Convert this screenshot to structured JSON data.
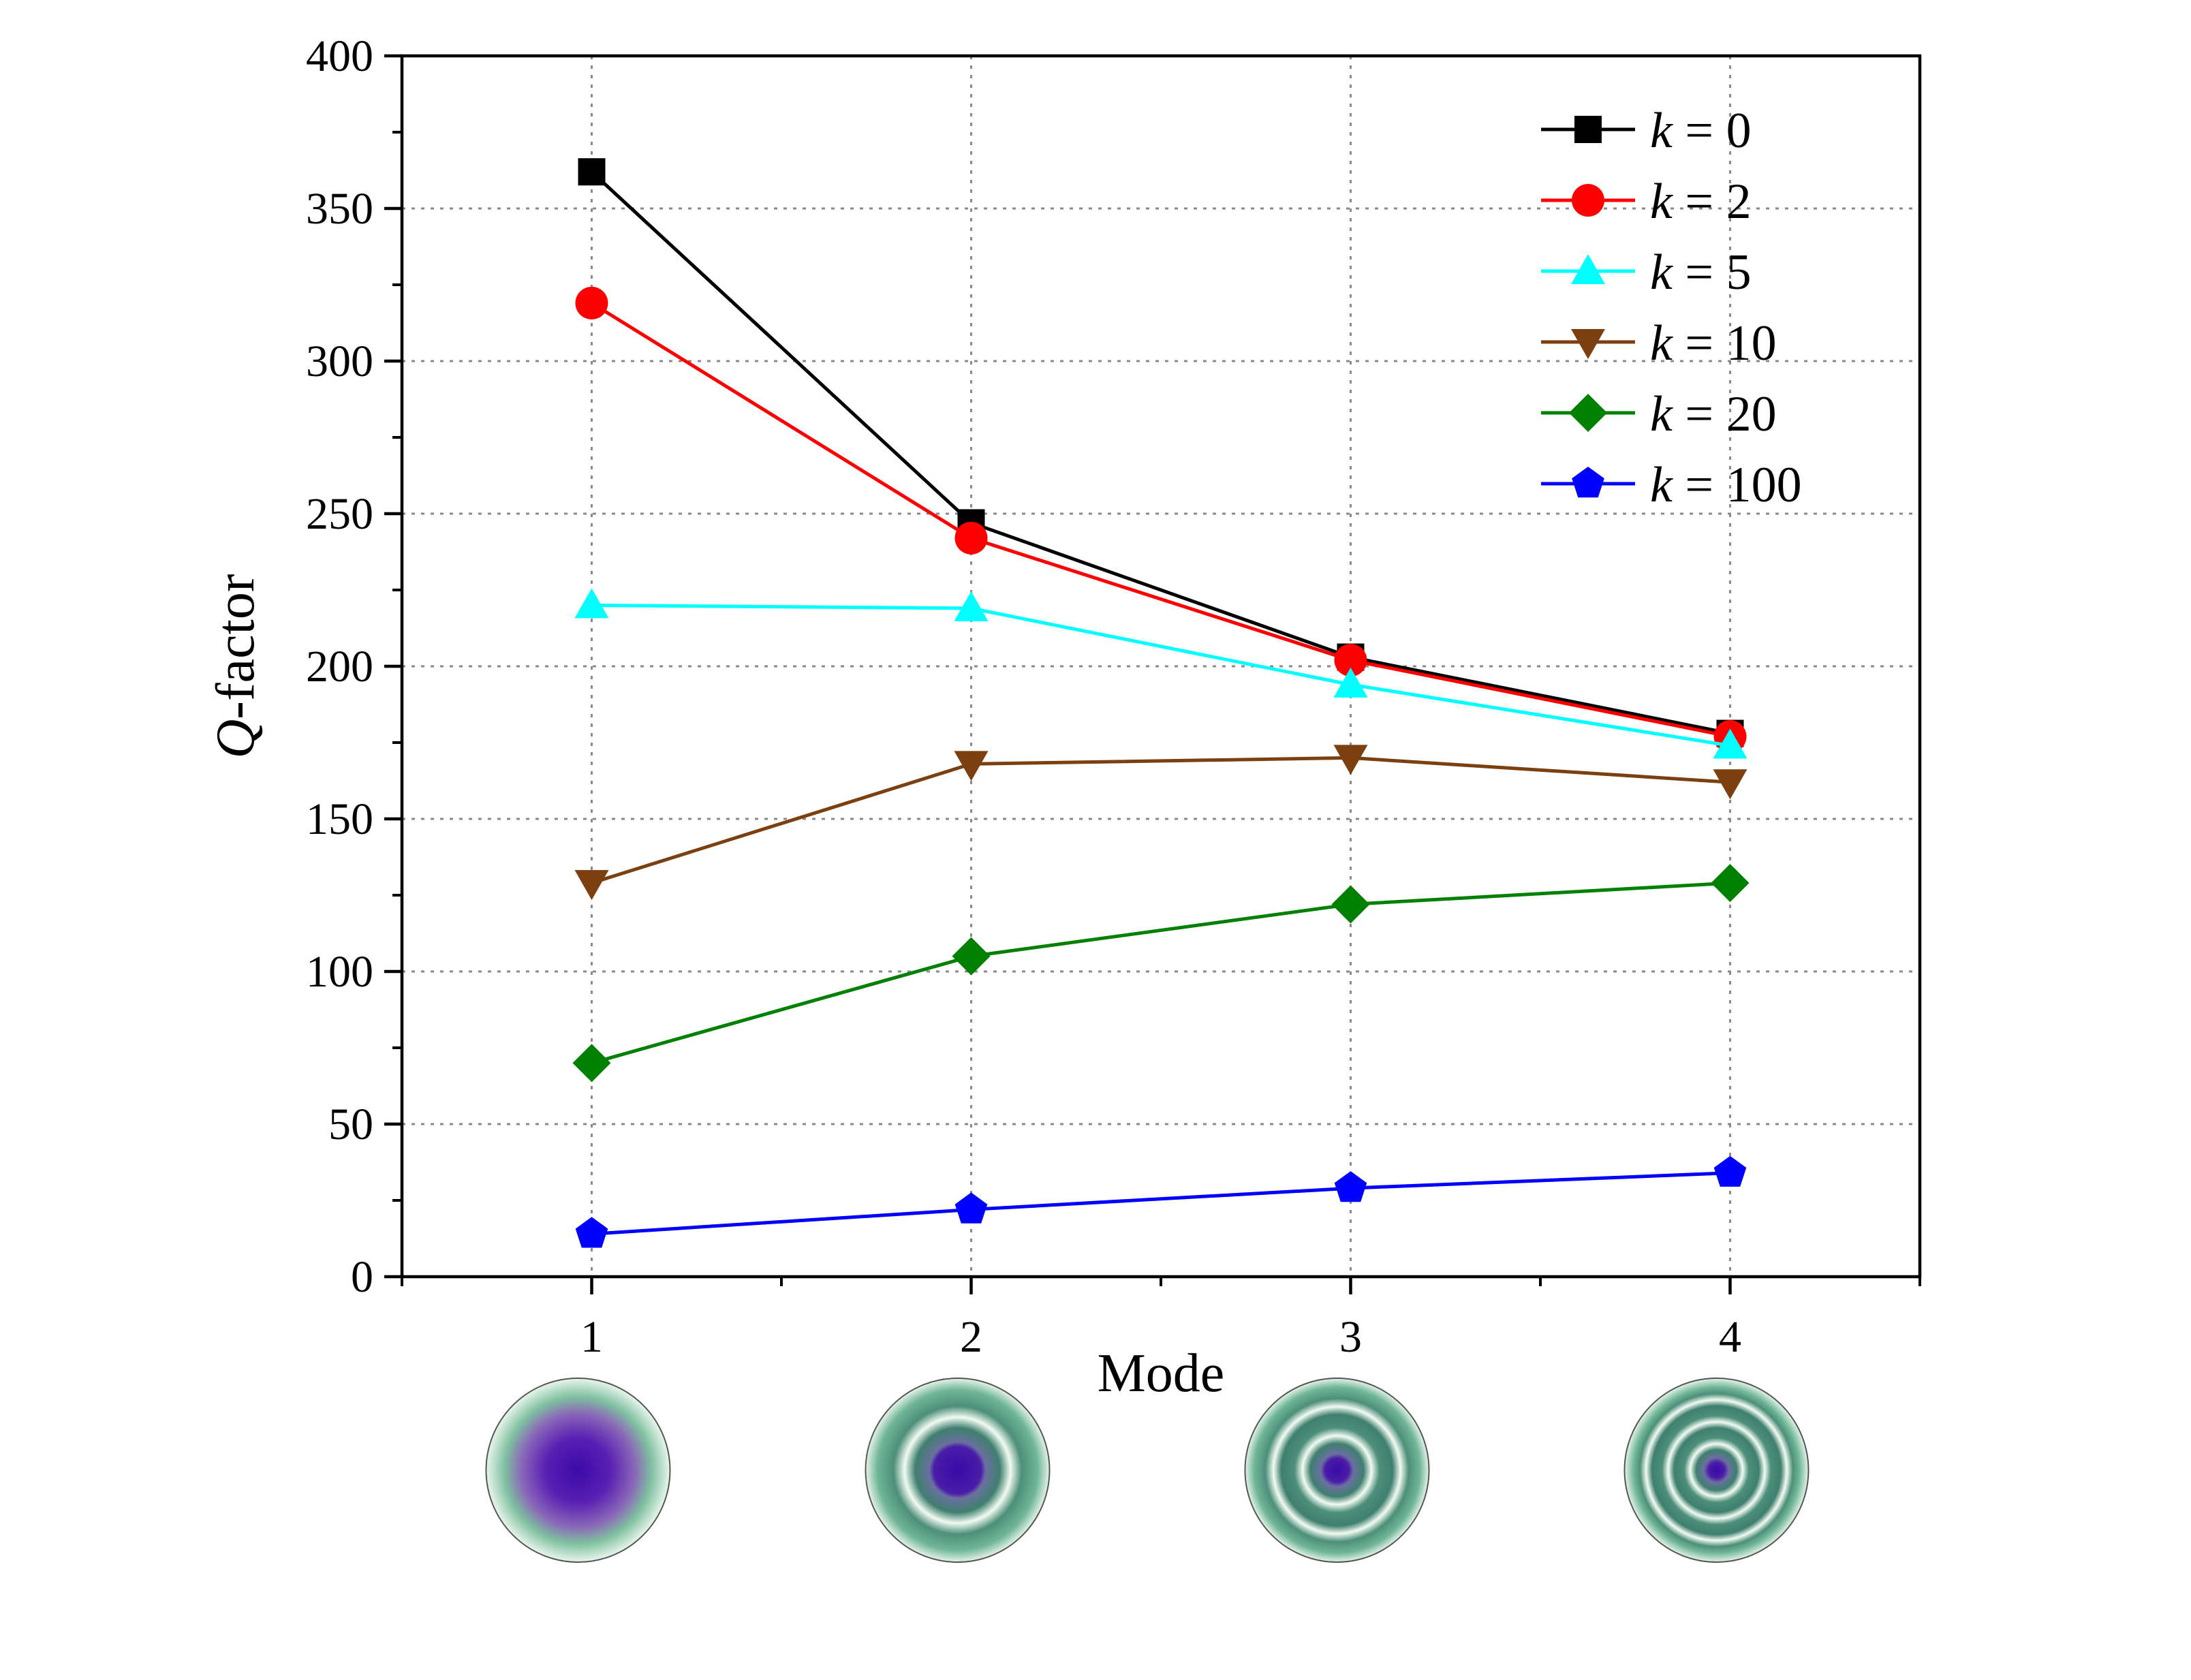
{
  "chart_data": {
    "type": "line",
    "title": "",
    "xlabel": "Mode",
    "ylabel_italic": "Q",
    "ylabel_rest": "-factor",
    "x": [
      1,
      2,
      3,
      4
    ],
    "x_ticks": [
      "1",
      "2",
      "3",
      "4"
    ],
    "xlim": [
      0.5,
      4.5
    ],
    "ylim": [
      0,
      400
    ],
    "y_ticks": [
      "0",
      "50",
      "100",
      "150",
      "200",
      "250",
      "300",
      "350",
      "400"
    ],
    "grid": true,
    "legend_position": "top-right",
    "series": [
      {
        "name_italic": "k",
        "name_rest": " = 0",
        "color": "#000000",
        "marker": "square",
        "values": [
          362,
          247,
          203,
          178
        ]
      },
      {
        "name_italic": "k",
        "name_rest": " = 2",
        "color": "#ff0000",
        "marker": "circle",
        "values": [
          319,
          242,
          202,
          177
        ]
      },
      {
        "name_italic": "k",
        "name_rest": " = 5",
        "color": "#00ffff",
        "marker": "triangle-up",
        "values": [
          220,
          219,
          194,
          174
        ]
      },
      {
        "name_italic": "k",
        "name_rest": " = 10",
        "color": "#7b3f10",
        "marker": "triangle-down",
        "values": [
          129,
          168,
          170,
          162
        ]
      },
      {
        "name_italic": "k",
        "name_rest": " = 20",
        "color": "#008000",
        "marker": "diamond",
        "values": [
          70,
          105,
          122,
          129
        ]
      },
      {
        "name_italic": "k",
        "name_rest": " = 100",
        "color": "#0000ff",
        "marker": "pentagon",
        "values": [
          14,
          22,
          29,
          34
        ]
      }
    ],
    "mode_profiles": [
      {
        "mode": 1,
        "rings": 0
      },
      {
        "mode": 2,
        "rings": 1
      },
      {
        "mode": 3,
        "rings": 2
      },
      {
        "mode": 4,
        "rings": 3
      }
    ]
  }
}
